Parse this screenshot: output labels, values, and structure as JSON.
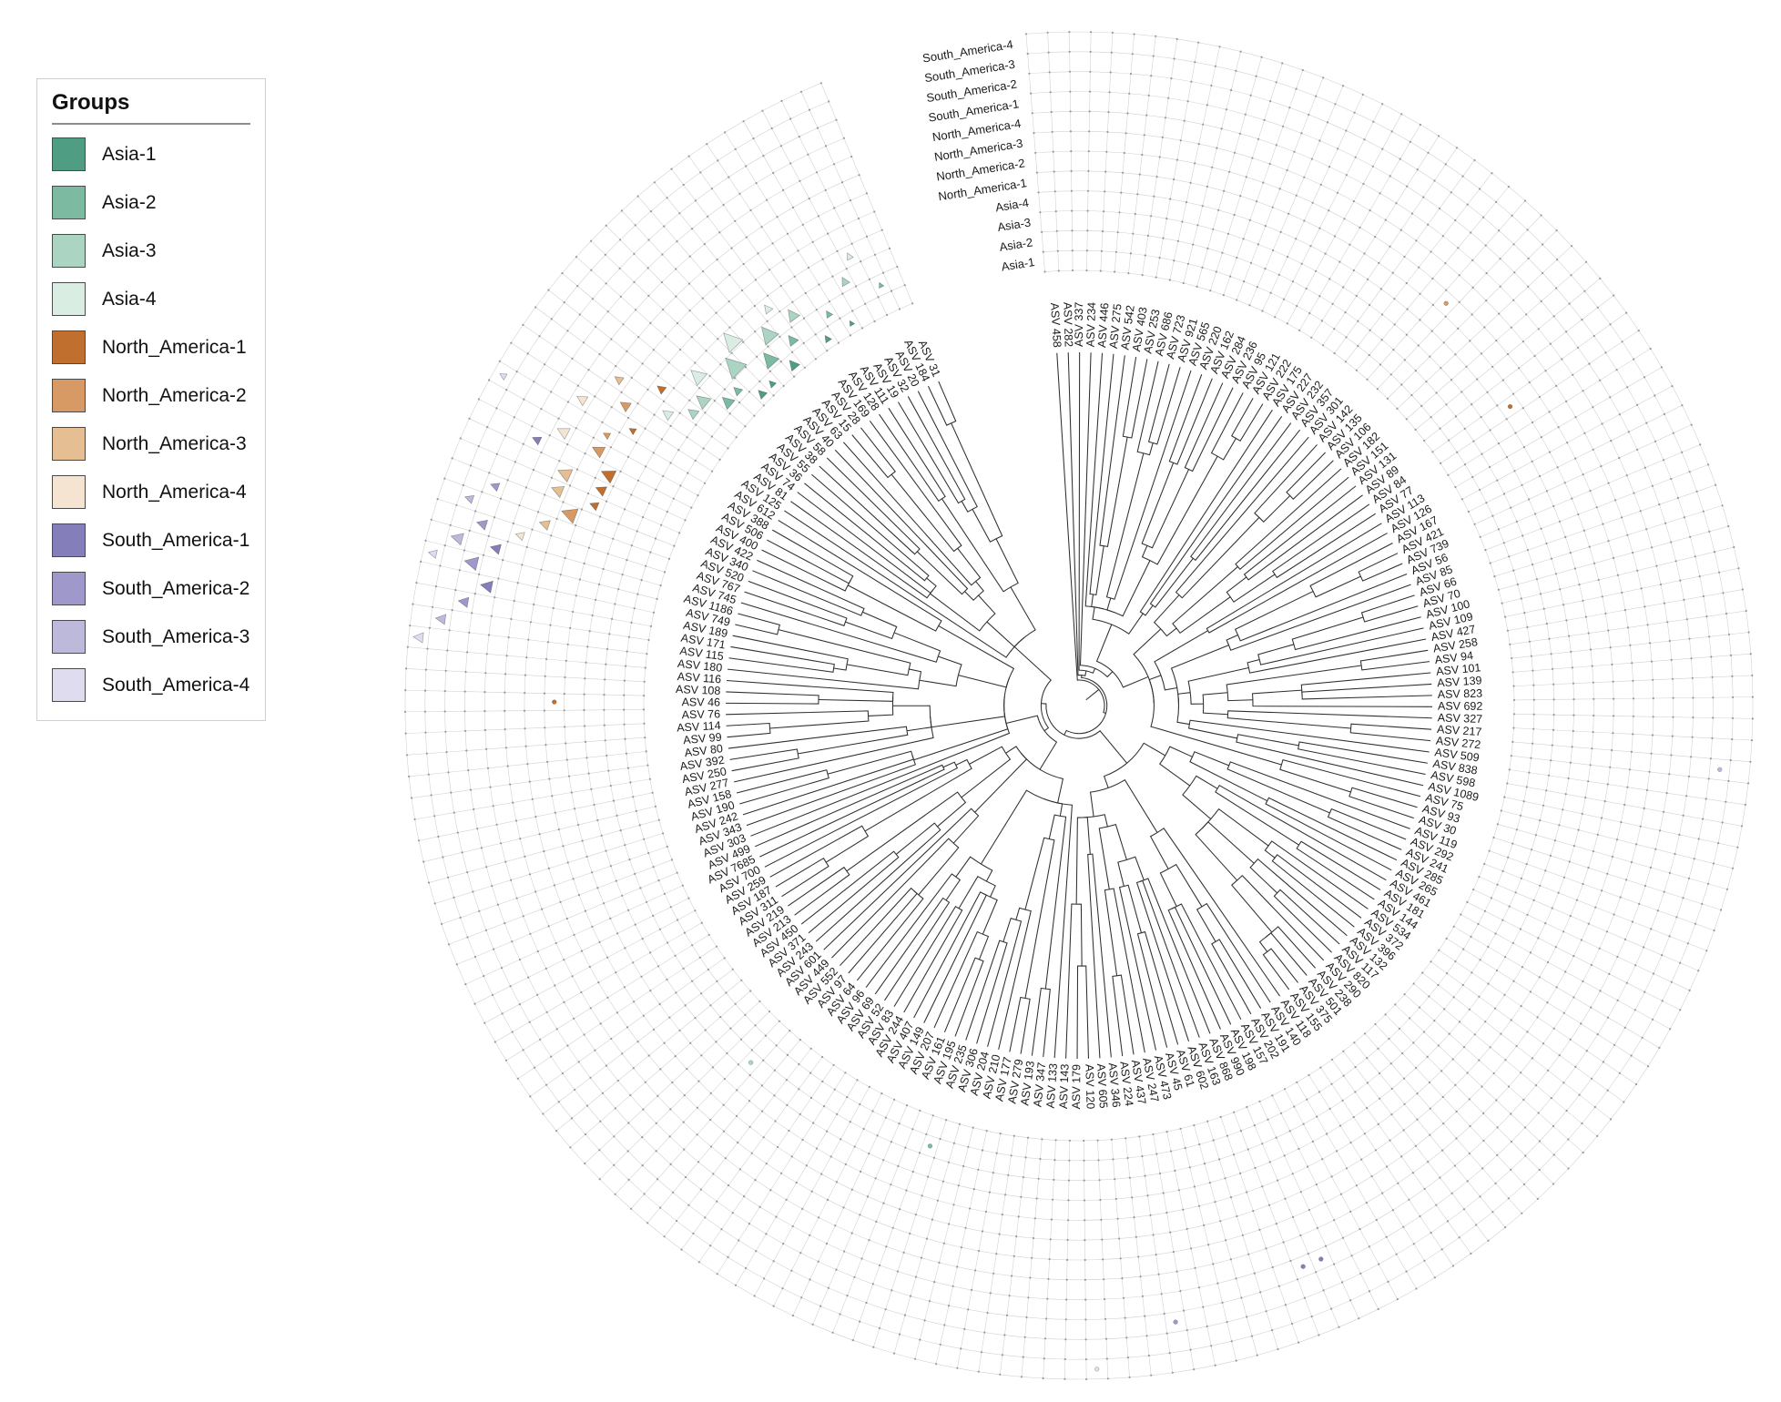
{
  "legend": {
    "title": "Groups"
  },
  "chart_data": {
    "type": "circular-cladogram-with-ring-heatmap",
    "description": "Circular phylogenetic tree of ASVs with a 12-ring outer grid; rings are groups (inner to outer), colored triangle/dot markers show group abundance per leaf",
    "gap_degrees": 18,
    "direction": "clockwise",
    "rings_inner_to_outer": [
      {
        "label": "Asia-1",
        "color": "#4f9e83"
      },
      {
        "label": "Asia-2",
        "color": "#7cbaa1"
      },
      {
        "label": "Asia-3",
        "color": "#abd4c2"
      },
      {
        "label": "Asia-4",
        "color": "#d9ede3"
      },
      {
        "label": "North_America-1",
        "color": "#c16f2f"
      },
      {
        "label": "North_America-2",
        "color": "#d79a64"
      },
      {
        "label": "North_America-3",
        "color": "#e5be93"
      },
      {
        "label": "North_America-4",
        "color": "#f4e4d1"
      },
      {
        "label": "South_America-1",
        "color": "#847eba"
      },
      {
        "label": "South_America-2",
        "color": "#9e99ca"
      },
      {
        "label": "South_America-3",
        "color": "#bdb9db"
      },
      {
        "label": "South_America-4",
        "color": "#dfdcef"
      }
    ],
    "leaves": [
      "ASV 458",
      "ASV 282",
      "ASV 337",
      "ASV 234",
      "ASV 446",
      "ASV 275",
      "ASV 542",
      "ASV 403",
      "ASV 253",
      "ASV 686",
      "ASV 723",
      "ASV 921",
      "ASV 565",
      "ASV 220",
      "ASV 162",
      "ASV 284",
      "ASV 236",
      "ASV 95",
      "ASV 121",
      "ASV 222",
      "ASV 175",
      "ASV 227",
      "ASV 232",
      "ASV 357",
      "ASV 301",
      "ASV 142",
      "ASV 135",
      "ASV 106",
      "ASV 182",
      "ASV 151",
      "ASV 131",
      "ASV 89",
      "ASV 84",
      "ASV 77",
      "ASV 113",
      "ASV 126",
      "ASV 167",
      "ASV 421",
      "ASV 739",
      "ASV 56",
      "ASV 85",
      "ASV 66",
      "ASV 70",
      "ASV 100",
      "ASV 109",
      "ASV 427",
      "ASV 258",
      "ASV 94",
      "ASV 101",
      "ASV 139",
      "ASV 823",
      "ASV 692",
      "ASV 327",
      "ASV 217",
      "ASV 272",
      "ASV 509",
      "ASV 838",
      "ASV 598",
      "ASV 1089",
      "ASV 75",
      "ASV 93",
      "ASV 30",
      "ASV 119",
      "ASV 292",
      "ASV 241",
      "ASV 285",
      "ASV 265",
      "ASV 461",
      "ASV 181",
      "ASV 144",
      "ASV 534",
      "ASV 372",
      "ASV 396",
      "ASV 132",
      "ASV 117",
      "ASV 820",
      "ASV 290",
      "ASV 238",
      "ASV 501",
      "ASV 375",
      "ASV 155",
      "ASV 118",
      "ASV 140",
      "ASV 191",
      "ASV 202",
      "ASV 157",
      "ASV 198",
      "ASV 990",
      "ASV 868",
      "ASV 163",
      "ASV 602",
      "ASV 61",
      "ASV 45",
      "ASV 473",
      "ASV 247",
      "ASV 437",
      "ASV 224",
      "ASV 346",
      "ASV 605",
      "ASV 120",
      "ASV 179",
      "ASV 143",
      "ASV 133",
      "ASV 347",
      "ASV 193",
      "ASV 279",
      "ASV 177",
      "ASV 210",
      "ASV 204",
      "ASV 306",
      "ASV 235",
      "ASV 195",
      "ASV 161",
      "ASV 207",
      "ASV 149",
      "ASV 407",
      "ASV 244",
      "ASV 83",
      "ASV 52",
      "ASV 69",
      "ASV 96",
      "ASV 64",
      "ASV 97",
      "ASV 552",
      "ASV 449",
      "ASV 601",
      "ASV 243",
      "ASV 371",
      "ASV 450",
      "ASV 213",
      "ASV 219",
      "ASV 311",
      "ASV 187",
      "ASV 259",
      "ASV 700",
      "ASV 7685",
      "ASV 499",
      "ASV 303",
      "ASV 343",
      "ASV 242",
      "ASV 190",
      "ASV 158",
      "ASV 277",
      "ASV 250",
      "ASV 392",
      "ASV 80",
      "ASV 99",
      "ASV 114",
      "ASV 76",
      "ASV 46",
      "ASV 108",
      "ASV 116",
      "ASV 180",
      "ASV 115",
      "ASV 171",
      "ASV 189",
      "ASV 749",
      "ASV 1186",
      "ASV 745",
      "ASV 767",
      "ASV 520",
      "ASV 340",
      "ASV 422",
      "ASV 400",
      "ASV 506",
      "ASV 388",
      "ASV 612",
      "ASV 125",
      "ASV 81",
      "ASV 74",
      "ASV 36",
      "ASV 55",
      "ASV 38",
      "ASV 58",
      "ASV 40",
      "ASV 63",
      "ASV 15",
      "ASV 28",
      "ASV 169",
      "ASV 128",
      "ASV 111",
      "ASV 19",
      "ASV 32",
      "ASV 20",
      "ASV 184",
      "ASV 31"
    ],
    "markers": [
      {
        "leaf": "ASV 58",
        "ring": "Asia-1",
        "size": 5
      },
      {
        "leaf": "ASV 40",
        "ring": "Asia-1",
        "size": 4
      },
      {
        "leaf": "ASV 15",
        "ring": "Asia-1",
        "size": 6
      },
      {
        "leaf": "ASV 128",
        "ring": "Asia-1",
        "size": 4
      },
      {
        "leaf": "ASV 19",
        "ring": "Asia-1",
        "size": 3
      },
      {
        "leaf": "ASV 55",
        "ring": "Asia-2",
        "size": 7
      },
      {
        "leaf": "ASV 38",
        "ring": "Asia-2",
        "size": 5
      },
      {
        "leaf": "ASV 63",
        "ring": "Asia-2",
        "size": 9
      },
      {
        "leaf": "ASV 28",
        "ring": "Asia-2",
        "size": 6
      },
      {
        "leaf": "ASV 111",
        "ring": "Asia-2",
        "size": 4
      },
      {
        "leaf": "ASV 184",
        "ring": "Asia-2",
        "size": 3
      },
      {
        "leaf": "ASV 36",
        "ring": "Asia-3",
        "size": 8
      },
      {
        "leaf": "ASV 58",
        "ring": "Asia-3",
        "size": 12
      },
      {
        "leaf": "ASV 15",
        "ring": "Asia-3",
        "size": 10
      },
      {
        "leaf": "ASV 169",
        "ring": "Asia-3",
        "size": 7
      },
      {
        "leaf": "ASV 32",
        "ring": "Asia-3",
        "size": 5
      },
      {
        "leaf": "ASV 74",
        "ring": "Asia-3",
        "size": 6
      },
      {
        "leaf": "ASV 81",
        "ring": "Asia-4",
        "size": 6
      },
      {
        "leaf": "ASV 55",
        "ring": "Asia-4",
        "size": 9
      },
      {
        "leaf": "ASV 40",
        "ring": "Asia-4",
        "size": 11
      },
      {
        "leaf": "ASV 28",
        "ring": "Asia-4",
        "size": 5
      },
      {
        "leaf": "ASV 20",
        "ring": "Asia-4",
        "size": 4
      },
      {
        "leaf": "ASV 422",
        "ring": "North_America-1",
        "size": 6
      },
      {
        "leaf": "ASV 400",
        "ring": "North_America-1",
        "size": 8
      },
      {
        "leaf": "ASV 340",
        "ring": "North_America-1",
        "size": 5
      },
      {
        "leaf": "ASV 612",
        "ring": "North_America-1",
        "size": 4
      },
      {
        "leaf": "ASV 74",
        "ring": "North_America-1",
        "size": 5
      },
      {
        "leaf": "ASV 506",
        "ring": "North_America-2",
        "size": 7
      },
      {
        "leaf": "ASV 520",
        "ring": "North_America-2",
        "size": 9
      },
      {
        "leaf": "ASV 125",
        "ring": "North_America-2",
        "size": 6
      },
      {
        "leaf": "ASV 388",
        "ring": "North_America-2",
        "size": 4
      },
      {
        "leaf": "ASV 767",
        "ring": "North_America-3",
        "size": 6
      },
      {
        "leaf": "ASV 422",
        "ring": "North_America-3",
        "size": 8
      },
      {
        "leaf": "ASV 81",
        "ring": "North_America-3",
        "size": 5
      },
      {
        "leaf": "ASV 340",
        "ring": "North_America-3",
        "size": 7
      },
      {
        "leaf": "ASV 745",
        "ring": "North_America-4",
        "size": 5
      },
      {
        "leaf": "ASV 506",
        "ring": "North_America-4",
        "size": 7
      },
      {
        "leaf": "ASV 612",
        "ring": "North_America-4",
        "size": 6
      },
      {
        "leaf": "ASV 1186",
        "ring": "South_America-1",
        "size": 6
      },
      {
        "leaf": "ASV 400",
        "ring": "South_America-1",
        "size": 5
      },
      {
        "leaf": "ASV 189",
        "ring": "South_America-1",
        "size": 7
      },
      {
        "leaf": "ASV 749",
        "ring": "South_America-2",
        "size": 8
      },
      {
        "leaf": "ASV 745",
        "ring": "South_America-2",
        "size": 6
      },
      {
        "leaf": "ASV 520",
        "ring": "South_America-2",
        "size": 5
      },
      {
        "leaf": "ASV 171",
        "ring": "South_America-2",
        "size": 6
      },
      {
        "leaf": "ASV 1186",
        "ring": "South_America-3",
        "size": 7
      },
      {
        "leaf": "ASV 767",
        "ring": "South_America-3",
        "size": 5
      },
      {
        "leaf": "ASV 115",
        "ring": "South_America-3",
        "size": 6
      },
      {
        "leaf": "ASV 749",
        "ring": "South_America-4",
        "size": 5
      },
      {
        "leaf": "ASV 180",
        "ring": "South_America-4",
        "size": 6
      },
      {
        "leaf": "ASV 388",
        "ring": "South_America-4",
        "size": 4
      }
    ],
    "dot_markers": [
      {
        "leaf": "ASV 84",
        "ring": "North_America-1"
      },
      {
        "leaf": "ASV 142",
        "ring": "North_America-2"
      },
      {
        "leaf": "ASV 868",
        "ring": "South_America-1"
      },
      {
        "leaf": "ASV 437",
        "ring": "South_America-2"
      },
      {
        "leaf": "ASV 990",
        "ring": "South_America-1"
      },
      {
        "leaf": "ASV 46",
        "ring": "North_America-1"
      },
      {
        "leaf": "ASV 235",
        "ring": "Asia-2"
      },
      {
        "leaf": "ASV 272",
        "ring": "South_America-3"
      },
      {
        "leaf": "ASV 552",
        "ring": "Asia-3"
      },
      {
        "leaf": "ASV 120",
        "ring": "South_America-4"
      }
    ]
  }
}
